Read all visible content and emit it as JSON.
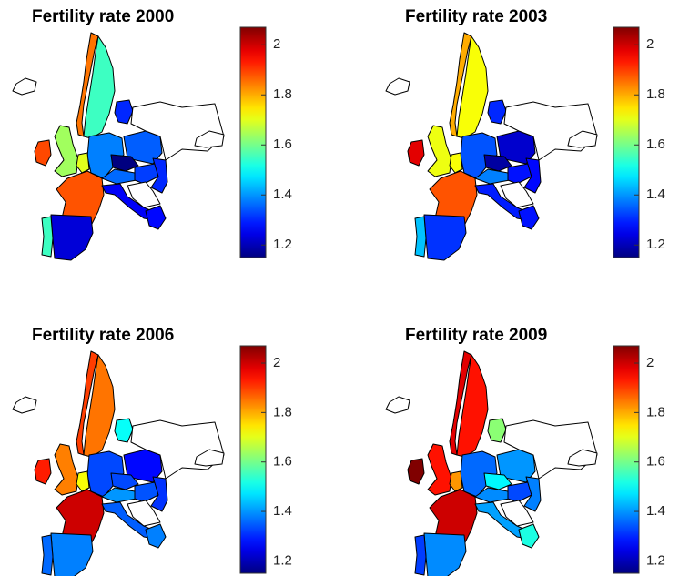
{
  "clim": [
    1.15,
    2.07
  ],
  "ticks": [
    1.2,
    1.4,
    1.6,
    1.8,
    2
  ],
  "maps": [
    {
      "title": "Fertility rate 2000",
      "values": [
        1.85,
        1.55,
        1.3,
        1.64,
        1.89,
        1.88,
        1.23,
        1.55,
        1.38,
        1.7,
        1.35,
        1.15,
        1.36,
        1.32,
        1.3,
        1.26,
        1.27,
        null,
        null,
        null,
        null
      ]
    },
    {
      "title": "Fertility rate 2003",
      "values": [
        1.8,
        1.72,
        1.3,
        1.71,
        1.98,
        1.88,
        1.31,
        1.44,
        1.34,
        1.72,
        1.22,
        1.18,
        1.38,
        1.28,
        1.27,
        1.29,
        1.28,
        null,
        null,
        null,
        null
      ]
    },
    {
      "title": "Fertility rate 2006",
      "values": [
        1.9,
        1.85,
        1.5,
        1.84,
        1.93,
        2.0,
        1.38,
        1.36,
        1.33,
        1.72,
        1.27,
        1.33,
        1.4,
        1.34,
        1.31,
        1.35,
        1.38,
        null,
        null,
        null,
        null
      ]
    },
    {
      "title": "Fertility rate 2009",
      "values": [
        1.98,
        1.94,
        1.62,
        1.94,
        2.07,
        2.0,
        1.39,
        1.32,
        1.36,
        1.82,
        1.4,
        1.49,
        1.39,
        1.33,
        1.38,
        1.41,
        1.52,
        null,
        null,
        null,
        null
      ]
    }
  ]
}
